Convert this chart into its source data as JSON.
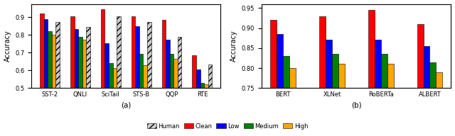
{
  "subplot_a": {
    "title": "(a)",
    "ylabel": "Accuracy",
    "ylim": [
      0.5,
      0.975
    ],
    "yticks": [
      0.5,
      0.6,
      0.7,
      0.8,
      0.9
    ],
    "categories": [
      "SST-2",
      "QNLI",
      "SciTail",
      "STS-B",
      "QQP",
      "RTE"
    ],
    "series": {
      "Clean": [
        0.92,
        0.905,
        0.945,
        0.905,
        0.885,
        0.685
      ],
      "Low": [
        0.89,
        0.835,
        0.755,
        0.85,
        0.775,
        0.605
      ],
      "Medium": [
        0.82,
        0.79,
        0.64,
        0.695,
        0.695,
        0.53
      ],
      "High": [
        0.8,
        0.775,
        0.615,
        0.63,
        0.665,
        0.52
      ],
      "Human": [
        0.875,
        0.845,
        0.905,
        0.875,
        0.79,
        0.635
      ]
    }
  },
  "subplot_b": {
    "title": "(b)",
    "ylabel": "Accuracy",
    "ylim": [
      0.75,
      0.96
    ],
    "yticks": [
      0.75,
      0.8,
      0.85,
      0.9,
      0.95
    ],
    "categories": [
      "BERT",
      "XLNet",
      "RoBERTa",
      "ALBERT"
    ],
    "series": {
      "Clean": [
        0.92,
        0.93,
        0.945,
        0.91
      ],
      "Low": [
        0.885,
        0.87,
        0.87,
        0.855
      ],
      "Medium": [
        0.83,
        0.835,
        0.835,
        0.815
      ],
      "High": [
        0.8,
        0.81,
        0.81,
        0.79
      ]
    }
  },
  "colors": {
    "Human": "#cccccc",
    "Clean": "#ff0000",
    "Low": "#0000ff",
    "Medium": "#008000",
    "High": "#ffa500"
  },
  "hatch_pattern": "////",
  "bar_width": 0.13,
  "figsize": [
    6.4,
    1.92
  ],
  "dpi": 100
}
